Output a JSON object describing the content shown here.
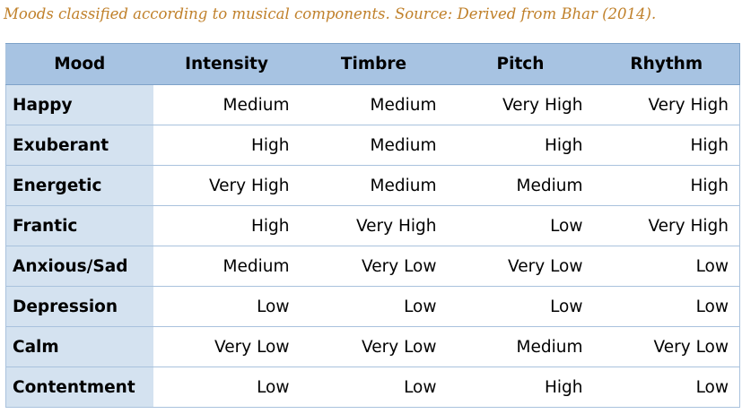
{
  "caption": "Moods classified according to musical components. Source: Derived from Bhar (2014).",
  "table": {
    "headers": [
      "Mood",
      "Intensity",
      "Timbre",
      "Pitch",
      "Rhythm"
    ],
    "rows": [
      {
        "mood": "Happy",
        "intensity": "Medium",
        "timbre": "Medium",
        "pitch": "Very High",
        "rhythm": "Very High"
      },
      {
        "mood": "Exuberant",
        "intensity": "High",
        "timbre": "Medium",
        "pitch": "High",
        "rhythm": "High"
      },
      {
        "mood": "Energetic",
        "intensity": "Very High",
        "timbre": "Medium",
        "pitch": "Medium",
        "rhythm": "High"
      },
      {
        "mood": "Frantic",
        "intensity": "High",
        "timbre": "Very High",
        "pitch": "Low",
        "rhythm": "Very High"
      },
      {
        "mood": "Anxious/Sad",
        "intensity": "Medium",
        "timbre": "Very Low",
        "pitch": "Very Low",
        "rhythm": "Low"
      },
      {
        "mood": "Depression",
        "intensity": "Low",
        "timbre": "Low",
        "pitch": "Low",
        "rhythm": "Low"
      },
      {
        "mood": "Calm",
        "intensity": "Very Low",
        "timbre": "Very Low",
        "pitch": "Medium",
        "rhythm": "Very Low"
      },
      {
        "mood": "Contentment",
        "intensity": "Low",
        "timbre": "Low",
        "pitch": "High",
        "rhythm": "Low"
      }
    ]
  },
  "colors": {
    "caption": "#c0802a",
    "header_bg": "#a7c3e2",
    "mood_col_bg": "#d4e2f0",
    "row_border": "#a9c2dd"
  }
}
